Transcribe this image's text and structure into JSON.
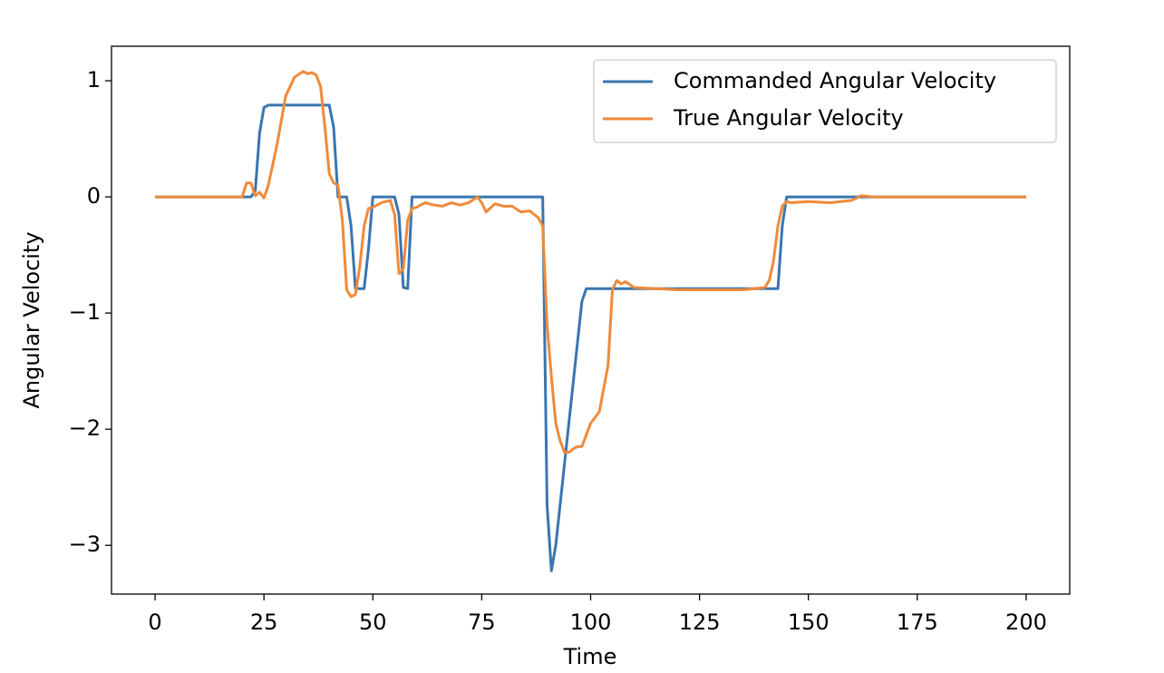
{
  "chart_data": {
    "type": "line",
    "xlabel": "Time",
    "ylabel": "Angular Velocity",
    "x": [
      0,
      5,
      10,
      15,
      20,
      21,
      22,
      23,
      24,
      25,
      26,
      28,
      30,
      32,
      34,
      35,
      36,
      37,
      38,
      39,
      40,
      41,
      42,
      43,
      44,
      45,
      46,
      47,
      48,
      49,
      50,
      52,
      54,
      55,
      56,
      57,
      58,
      59,
      60,
      62,
      64,
      66,
      68,
      70,
      72,
      74,
      75,
      76,
      78,
      80,
      82,
      84,
      86,
      88,
      89,
      90,
      91,
      92,
      93,
      94,
      95,
      96,
      97,
      98,
      99,
      100,
      102,
      104,
      105,
      106,
      107,
      108,
      110,
      115,
      120,
      125,
      130,
      135,
      140,
      141,
      142,
      143,
      144,
      145,
      146,
      150,
      155,
      160,
      162,
      165,
      170,
      180,
      190,
      200
    ],
    "series": [
      {
        "name": "Commanded Angular Velocity",
        "color": "#3a75b0",
        "values": [
          0,
          0,
          0,
          0,
          0,
          0,
          0,
          0.05,
          0.55,
          0.77,
          0.79,
          0.79,
          0.79,
          0.79,
          0.79,
          0.79,
          0.79,
          0.79,
          0.79,
          0.79,
          0.79,
          0.6,
          0,
          0,
          0,
          -0.25,
          -0.79,
          -0.79,
          -0.79,
          -0.45,
          0,
          0,
          0,
          0,
          -0.15,
          -0.78,
          -0.79,
          0,
          0,
          0,
          0,
          0,
          0,
          0,
          0,
          0,
          0,
          0,
          0,
          0,
          0,
          0,
          0,
          0,
          0,
          -2.65,
          -3.22,
          -3.0,
          -2.65,
          -2.3,
          -1.95,
          -1.6,
          -1.25,
          -0.9,
          -0.79,
          -0.79,
          -0.79,
          -0.79,
          -0.79,
          -0.79,
          -0.79,
          -0.79,
          -0.79,
          -0.79,
          -0.79,
          -0.79,
          -0.79,
          -0.79,
          -0.79,
          -0.79,
          -0.79,
          -0.79,
          -0.25,
          0,
          0,
          0,
          0,
          0,
          0,
          0,
          0,
          0,
          0,
          0
        ]
      },
      {
        "name": "True Angular Velocity",
        "color": "#ef8a3a",
        "values": [
          0,
          0,
          0,
          0,
          0,
          0.12,
          0.12,
          0.01,
          0.04,
          -0.01,
          0.1,
          0.45,
          0.87,
          1.03,
          1.08,
          1.06,
          1.07,
          1.05,
          0.95,
          0.6,
          0.2,
          0.12,
          0.1,
          -0.2,
          -0.8,
          -0.86,
          -0.84,
          -0.6,
          -0.25,
          -0.1,
          -0.09,
          -0.05,
          -0.03,
          -0.15,
          -0.66,
          -0.62,
          -0.2,
          -0.1,
          -0.09,
          -0.05,
          -0.07,
          -0.08,
          -0.05,
          -0.07,
          -0.05,
          0,
          -0.05,
          -0.13,
          -0.06,
          -0.08,
          -0.08,
          -0.13,
          -0.12,
          -0.18,
          -0.25,
          -1.1,
          -1.55,
          -1.95,
          -2.1,
          -2.2,
          -2.2,
          -2.17,
          -2.15,
          -2.15,
          -2.05,
          -1.95,
          -1.85,
          -1.45,
          -0.8,
          -0.72,
          -0.75,
          -0.73,
          -0.78,
          -0.79,
          -0.8,
          -0.8,
          -0.8,
          -0.8,
          -0.78,
          -0.72,
          -0.55,
          -0.25,
          -0.08,
          -0.04,
          -0.05,
          -0.04,
          -0.05,
          -0.03,
          0.01,
          0,
          0,
          0,
          0,
          0
        ]
      }
    ],
    "xlim": [
      -10,
      210
    ],
    "ylim": [
      -3.42,
      1.297
    ],
    "xticks": [
      0,
      25,
      50,
      75,
      100,
      125,
      150,
      175,
      200
    ],
    "yticks": [
      {
        "value": -3,
        "label": "−3"
      },
      {
        "value": -2,
        "label": "−2"
      },
      {
        "value": -1,
        "label": "−1"
      },
      0,
      1
    ],
    "legend": "upper right"
  }
}
